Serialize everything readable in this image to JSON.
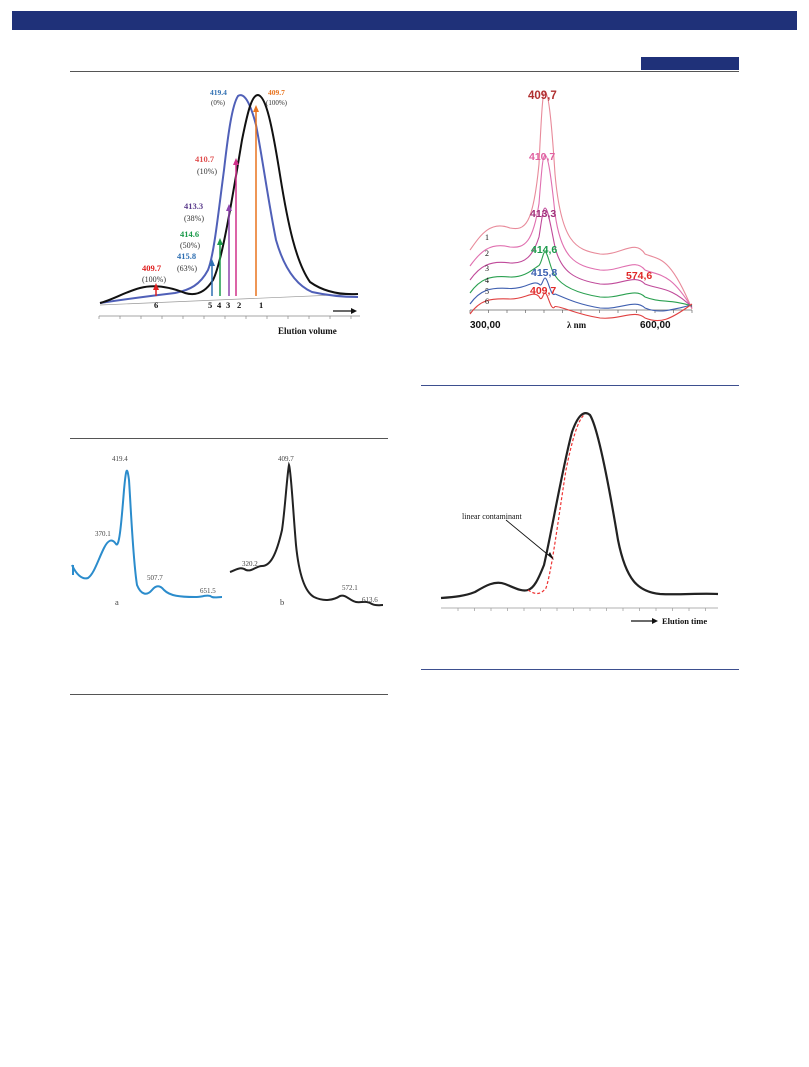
{
  "figures": [
    {
      "id": "elution_spectral",
      "legend_peak_labels": [
        {
          "value": "419.4",
          "pct": "(0%)",
          "color": "#2f6fb2"
        },
        {
          "value": "409.7",
          "pct": "(100%)",
          "color": "#e8741f"
        },
        {
          "value": "410.7",
          "pct": "(10%)",
          "color": "#e05050"
        },
        {
          "value": "413.3",
          "pct": "(38%)",
          "color": "#5b3c8c"
        },
        {
          "value": "414.6",
          "pct": "(50%)",
          "color": "#1a9a4a"
        },
        {
          "value": "415.8",
          "pct": "(63%)",
          "color": "#2f6fb2"
        },
        {
          "value": "409.7",
          "pct": "(100%)",
          "color": "#e02020"
        }
      ],
      "arrow_numbers": [
        "1",
        "2",
        "3",
        "4",
        "5",
        "6"
      ],
      "xlabel": "Elution volume"
    },
    {
      "id": "uv_vis_spectra",
      "peak_labels": [
        {
          "text": "409,7",
          "color": "#b03030"
        },
        {
          "text": "410,7",
          "color": "#e060a0"
        },
        {
          "text": "413,3",
          "color": "#a0307a"
        },
        {
          "text": "414,6",
          "color": "#1a9a4a"
        },
        {
          "text": "415,8",
          "color": "#3a5fb0"
        },
        {
          "text": "409,7",
          "color": "#e02828"
        },
        {
          "text": "574,6",
          "color": "#e02828"
        }
      ],
      "curve_numbers": [
        "1",
        "2",
        "3",
        "4",
        "5",
        "6"
      ],
      "x_ticks": [
        "300,00",
        "600,00"
      ],
      "xlabel": "λ nm"
    },
    {
      "id": "spectra_ab",
      "a_peaks": [
        "419.4",
        "370.1",
        "507.7",
        "651.5"
      ],
      "b_peaks": [
        "409.7",
        "320.2",
        "572.1",
        "613.6"
      ],
      "panel_labels": [
        "a",
        "b"
      ]
    },
    {
      "id": "elution_time",
      "annotation": "linear contaminant",
      "xlabel": "Elution time"
    }
  ]
}
